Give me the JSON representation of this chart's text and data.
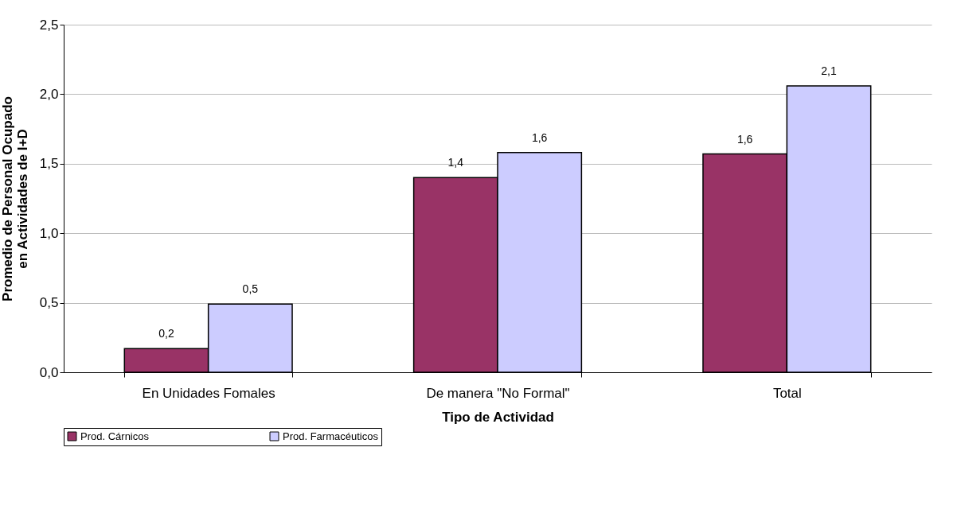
{
  "chart_data": {
    "type": "bar",
    "xlabel": "Tipo de Actividad",
    "ylabel": "Promedio de Personal Ocupado en Actividades de I+D",
    "categories": [
      "En Unidades Fomales",
      "De manera \"No Formal\"",
      "Total"
    ],
    "series": [
      {
        "name": "Prod. Cárnicos",
        "color": "#993366",
        "values": [
          0.17,
          1.4,
          1.57
        ],
        "value_labels": [
          "0,2",
          "1,4",
          "1,6"
        ]
      },
      {
        "name": "Prod. Farmacéuticos",
        "color": "#ccccff",
        "values": [
          0.49,
          1.58,
          2.06
        ],
        "value_labels": [
          "0,5",
          "1,6",
          "2,1"
        ]
      }
    ],
    "ylim": [
      0,
      2.5
    ],
    "yticks": [
      {
        "value": 0,
        "label": "0,0"
      },
      {
        "value": 0.5,
        "label": "0,5"
      },
      {
        "value": 1,
        "label": "1,0"
      },
      {
        "value": 1.5,
        "label": "1,5"
      },
      {
        "value": 2,
        "label": "2,0"
      },
      {
        "value": 2.5,
        "label": "2,5"
      }
    ],
    "grid": "y",
    "legend": "bottom"
  }
}
